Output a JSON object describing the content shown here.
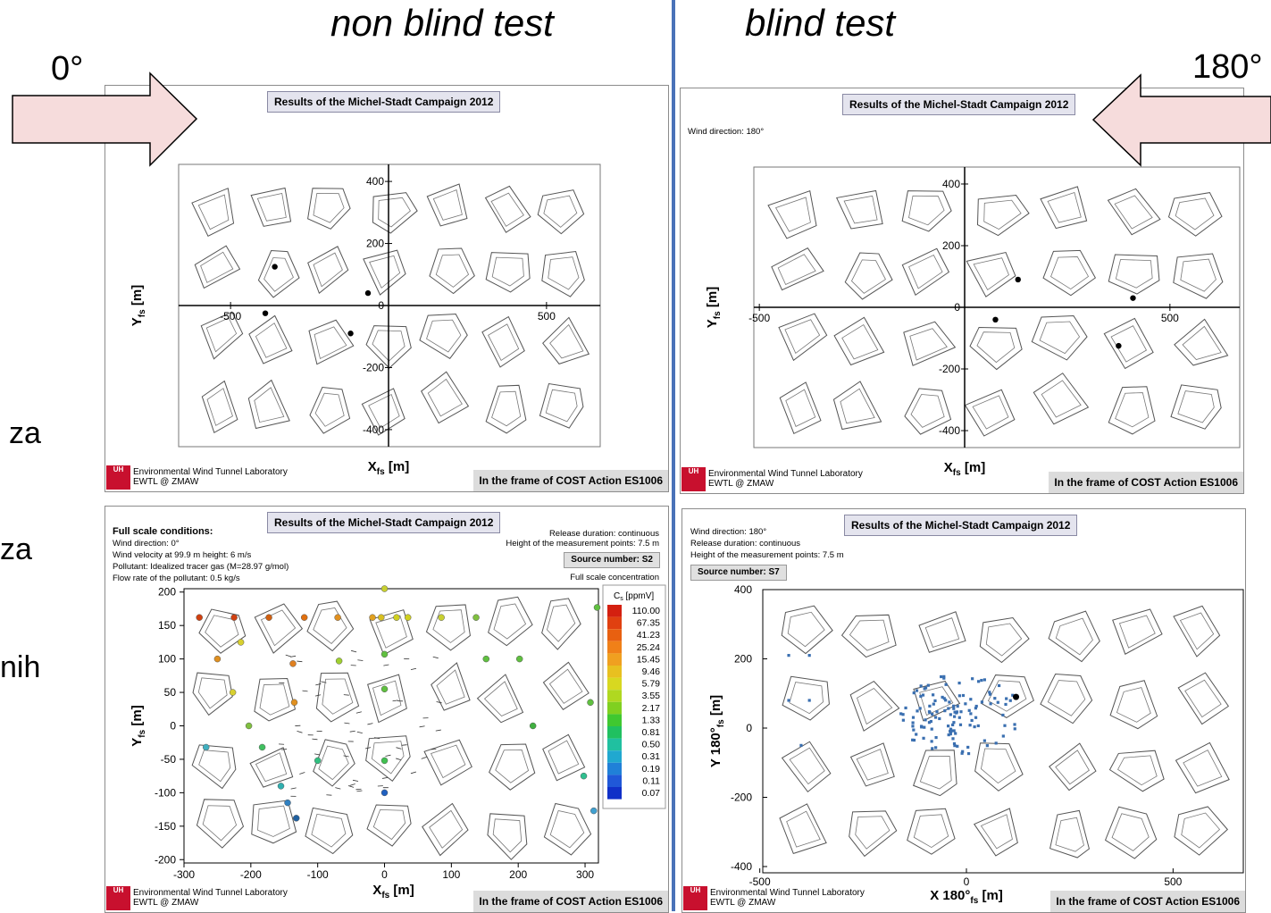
{
  "headings": {
    "left": "non blind test",
    "right": "blind test"
  },
  "angles": {
    "left": "0°",
    "right": "180°"
  },
  "fragments": [
    "za",
    "za",
    "nih"
  ],
  "colors": {
    "divider": "#4a72b8",
    "arrow_fill": "#f6dcdc",
    "logo_red": "#c8102e",
    "marker": "#3a6fb0"
  },
  "icons": {
    "left_arrow": "arrow-right-icon",
    "right_arrow": "arrow-left-icon",
    "logo": "uhh-logo-icon"
  },
  "common": {
    "panel_title": "Results of the Michel-Stadt Campaign 2012",
    "cost": "In the frame of COST Action ES1006",
    "lab_line1": "Environmental Wind Tunnel Laboratory",
    "lab_line2": "EWTL @ ZMAW",
    "logo_text": "UH"
  },
  "panel1": {
    "xlabel": "X",
    "xlabel_sub": "fs",
    "xlabel_unit": " [m]",
    "ylabel": "Y",
    "ylabel_sub": "fs",
    "ylabel_unit": " [m]",
    "x_ticks": [
      "-500",
      "500"
    ],
    "y_ticks": [
      "400",
      "200",
      "0",
      "-200",
      "-400"
    ],
    "points": [
      [
        -360,
        125
      ],
      [
        -390,
        -25
      ],
      [
        -65,
        40
      ],
      [
        -120,
        -90
      ]
    ]
  },
  "panel2": {
    "wind_direction": "Wind direction: 180°",
    "xlabel": "X",
    "xlabel_sub": "fs",
    "xlabel_unit": " [m]",
    "ylabel": "Y",
    "ylabel_sub": "fs",
    "ylabel_unit": " [m]",
    "x_ticks": [
      "-500",
      "500"
    ],
    "y_ticks": [
      "400",
      "200",
      "0",
      "-200",
      "-400"
    ],
    "points": [
      [
        130,
        90
      ],
      [
        75,
        -40
      ],
      [
        410,
        30
      ],
      [
        375,
        -125
      ]
    ]
  },
  "panel3": {
    "conditions_title": "Full scale conditions:",
    "conditions": [
      "Wind direction: 0°",
      "Wind velocity at 99.9 m height: 6 m/s",
      "Pollutant: Idealized tracer gas (M=28.97 g/mol)",
      "Flow rate of the pollutant: 0.5 kg/s"
    ],
    "release_duration": "Release duration: continuous",
    "measurement_height": "Height of the measurement points: 7.5 m",
    "source_number": "Source number:  S2",
    "concentration_label": "Full scale concentration",
    "legend_title": "C",
    "legend_title_sub": "s",
    "legend_unit": " [ppmV]",
    "legend_values": [
      "110.00",
      "67.35",
      "41.23",
      "25.24",
      "15.45",
      "9.46",
      "5.79",
      "3.55",
      "2.17",
      "1.33",
      "0.81",
      "0.50",
      "0.31",
      "0.19",
      "0.11",
      "0.07"
    ],
    "xlabel": "X",
    "xlabel_sub": "fs",
    "xlabel_unit": " [m]",
    "ylabel": "Y",
    "ylabel_sub": "fs",
    "ylabel_unit": " [m]",
    "x_ticks": [
      "-300",
      "-200",
      "-100",
      "0",
      "100",
      "200",
      "300"
    ],
    "y_ticks": [
      "200",
      "150",
      "100",
      "50",
      "0",
      "-50",
      "-100",
      "-150",
      "-200"
    ],
    "points": [
      [
        -277,
        162,
        "#d04010"
      ],
      [
        -225,
        162,
        "#d04010"
      ],
      [
        -173,
        162,
        "#d06010"
      ],
      [
        -120,
        162,
        "#e07010"
      ],
      [
        -70,
        162,
        "#e09020"
      ],
      [
        -18,
        162,
        "#e0a020"
      ],
      [
        -5,
        162,
        "#d8c020"
      ],
      [
        18,
        162,
        "#d0d020"
      ],
      [
        35,
        162,
        "#d0d020"
      ],
      [
        85,
        162,
        "#c8d030"
      ],
      [
        137,
        162,
        "#80c040"
      ],
      [
        -215,
        125,
        "#d8d030"
      ],
      [
        -250,
        100,
        "#e09020"
      ],
      [
        -137,
        93,
        "#e08020"
      ],
      [
        -68,
        97,
        "#a0d030"
      ],
      [
        0,
        107,
        "#60c040"
      ],
      [
        0,
        205,
        "#c8d030"
      ],
      [
        -227,
        50,
        "#d8d030"
      ],
      [
        -135,
        35,
        "#e09020"
      ],
      [
        0,
        55,
        "#60c040"
      ],
      [
        -203,
        0,
        "#80c040"
      ],
      [
        -183,
        -32,
        "#40c060"
      ],
      [
        -267,
        -32,
        "#40b0c0"
      ],
      [
        -100,
        -52,
        "#30c080"
      ],
      [
        0,
        -52,
        "#40c050"
      ],
      [
        -155,
        -90,
        "#30b0b0"
      ],
      [
        -145,
        -115,
        "#3080c0"
      ],
      [
        -132,
        -138,
        "#2060a0"
      ],
      [
        0,
        -100,
        "#2060c0"
      ],
      [
        152,
        100,
        "#60c040"
      ],
      [
        202,
        100,
        "#60c040"
      ],
      [
        222,
        0,
        "#40b040"
      ],
      [
        308,
        35,
        "#60c040"
      ],
      [
        318,
        177,
        "#60c040"
      ],
      [
        298,
        -75,
        "#30c090"
      ],
      [
        313,
        -127,
        "#40a0d0"
      ]
    ]
  },
  "panel4": {
    "wind_direction": "Wind direction: 180°",
    "release_duration": "Release duration: continuous",
    "measurement_height": "Height of the measurement points: 7.5 m",
    "source_number": "Source number:  S7",
    "xlabel": "X 180°",
    "xlabel_sub": "fs",
    "xlabel_unit": " [m]",
    "ylabel": "Y 180°",
    "ylabel_sub": "fs",
    "ylabel_unit": " [m]",
    "x_ticks": [
      "-500",
      "0",
      "500"
    ],
    "y_ticks": [
      "400",
      "200",
      "0",
      "-200",
      "-400"
    ],
    "source_point": [
      120,
      90
    ]
  }
}
